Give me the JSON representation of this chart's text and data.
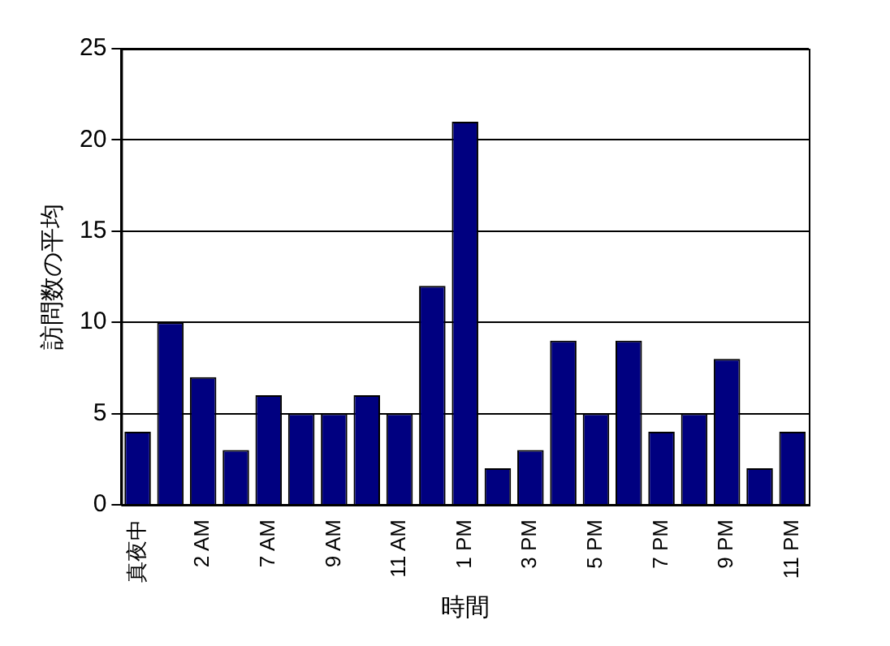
{
  "chart_data": {
    "type": "bar",
    "xlabel": "時間",
    "ylabel": "訪問数の平均",
    "categories": [
      "真夜中",
      null,
      "2 AM",
      null,
      "7 AM",
      null,
      "9 AM",
      null,
      "11 AM",
      null,
      "1 PM",
      null,
      "3 PM",
      null,
      "5 PM",
      null,
      "7 PM",
      null,
      "9 PM",
      null,
      "11 PM"
    ],
    "values": [
      4,
      10,
      7,
      3,
      6,
      5,
      5,
      6,
      5,
      12,
      21,
      2,
      3,
      9,
      5,
      9,
      4,
      5,
      8,
      2,
      4
    ],
    "color": "#000080",
    "ylim": [
      0,
      25
    ],
    "yticks": [
      0,
      5,
      10,
      15,
      20,
      25
    ],
    "grid": "y",
    "legend": false
  }
}
